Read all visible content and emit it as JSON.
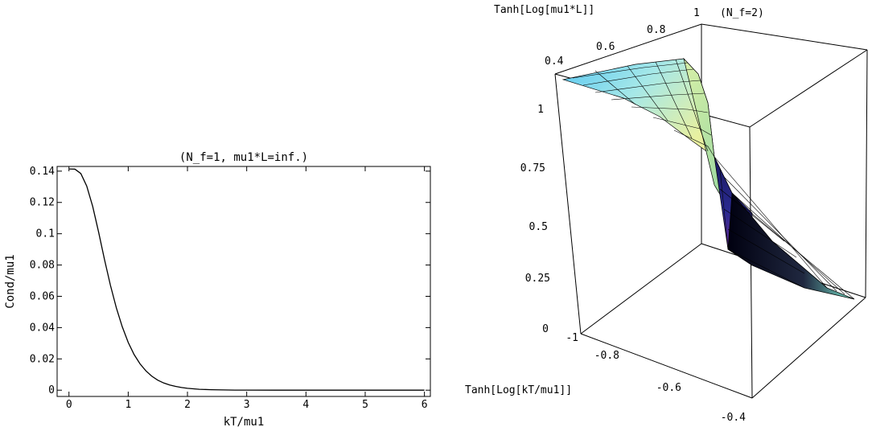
{
  "chart_data": [
    {
      "type": "line",
      "title": "(N_f=1, mu1*L=inf.)",
      "xlabel": "kT/mu1",
      "ylabel": "Cond/mu1",
      "xlim": [
        -0.2,
        6.1
      ],
      "ylim": [
        -0.004,
        0.143
      ],
      "xticks": [
        0,
        1,
        2,
        3,
        4,
        5,
        6
      ],
      "yticks": [
        0,
        0.02,
        0.04,
        0.06,
        0.08,
        0.1,
        0.12,
        0.14
      ],
      "ytick_labels": [
        "0",
        "0.02",
        "0.04",
        "0.06",
        "0.08",
        "0.1",
        "0.12",
        "0.14"
      ],
      "series": [
        {
          "x": [
            0,
            0.1,
            0.2,
            0.3,
            0.4,
            0.5,
            0.6,
            0.7,
            0.8,
            0.9,
            1.0,
            1.1,
            1.2,
            1.3,
            1.4,
            1.5,
            1.6,
            1.7,
            1.8,
            1.9,
            2.0,
            2.2,
            2.4,
            2.6,
            2.8,
            3.0,
            3.5,
            4.0,
            4.5,
            5.0,
            5.5,
            6.0
          ],
          "y": [
            0.1414,
            0.1413,
            0.1385,
            0.1305,
            0.1175,
            0.101,
            0.0835,
            0.067,
            0.0525,
            0.0405,
            0.0305,
            0.0228,
            0.0168,
            0.0123,
            0.0089,
            0.0064,
            0.0046,
            0.0033,
            0.0024,
            0.0017,
            0.0012,
            0.0006,
            0.0003,
            0.00015,
            8e-05,
            4e-05,
            1e-05,
            0,
            0,
            0,
            0,
            0
          ]
        }
      ],
      "grid": false,
      "legend": "none"
    },
    {
      "type": "surface3d",
      "title": "(N_f=2)",
      "axis_labels": {
        "z": "Tanh[Log[mu1*L]]",
        "x": "Tanh[Log[kT/mu1]]"
      },
      "z_ticks": [
        "0",
        "0.25",
        "0.5",
        "0.75",
        "1"
      ],
      "x_ticks": [
        "-1",
        "-0.8",
        "-0.6",
        "-0.4"
      ],
      "y_ticks": [
        "0.4",
        "0.6",
        "0.8",
        "1"
      ],
      "grid": false,
      "legend": "none"
    }
  ]
}
